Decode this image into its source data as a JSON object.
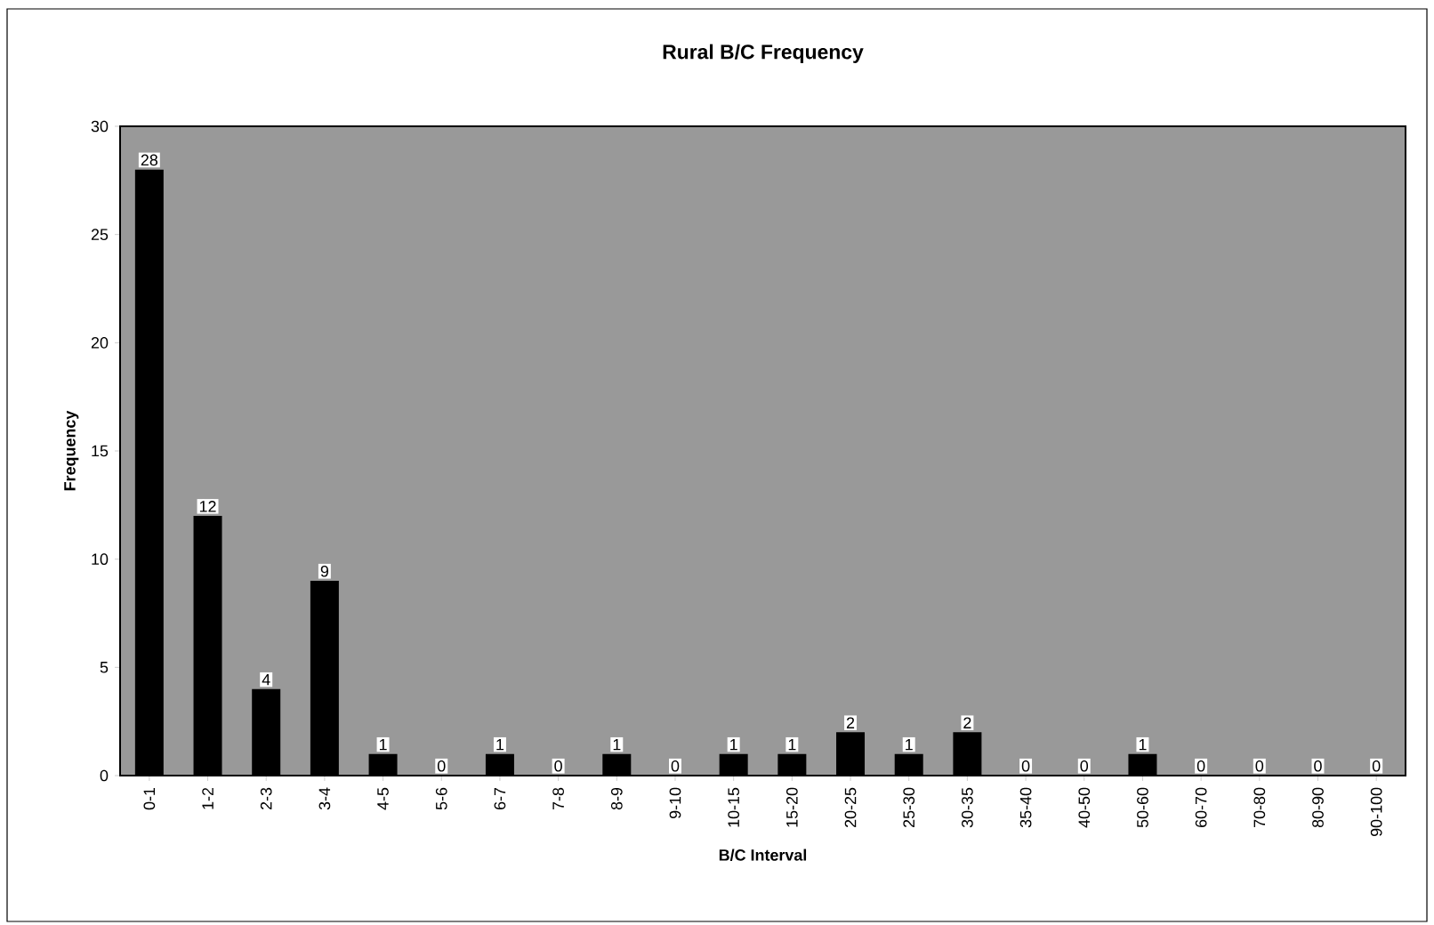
{
  "chart_data": {
    "type": "bar",
    "title": "Rural B/C Frequency",
    "xlabel": "B/C Interval",
    "ylabel": "Frequency",
    "categories": [
      "0-1",
      "1-2",
      "2-3",
      "3-4",
      "4-5",
      "5-6",
      "6-7",
      "7-8",
      "8-9",
      "9-10",
      "10-15",
      "15-20",
      "20-25",
      "25-30",
      "30-35",
      "35-40",
      "40-50",
      "50-60",
      "60-70",
      "70-80",
      "80-90",
      "90-100"
    ],
    "values": [
      28,
      12,
      4,
      9,
      1,
      0,
      1,
      0,
      1,
      0,
      1,
      1,
      2,
      1,
      2,
      0,
      0,
      1,
      0,
      0,
      0,
      0
    ],
    "color": "#000000",
    "ylim": [
      0,
      30
    ],
    "yticks": [
      0,
      5,
      10,
      15,
      20,
      25,
      30
    ],
    "data_labels": true
  }
}
